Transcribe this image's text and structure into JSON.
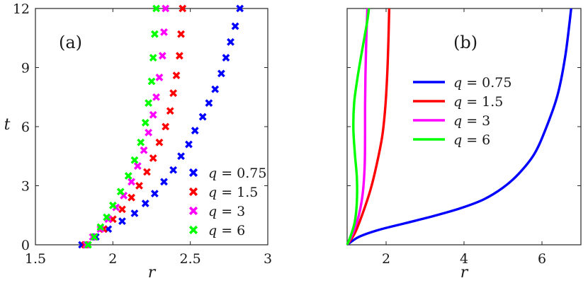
{
  "chart_data": [
    {
      "id": "a",
      "type": "scatter",
      "panel_label": "(a)",
      "xlabel": "r",
      "ylabel": "t",
      "xlim": [
        1.5,
        3
      ],
      "ylim": [
        0,
        12
      ],
      "xticks": [
        1.5,
        2,
        2.5,
        3
      ],
      "xtick_labels": [
        "1.5",
        "2",
        "2.5",
        "3"
      ],
      "yticks": [
        0,
        3,
        6,
        9,
        12
      ],
      "ytick_labels": [
        "0",
        "3",
        "6",
        "9",
        "12"
      ],
      "grid": false,
      "legend_position": "bottom-right",
      "marker": "x",
      "series": [
        {
          "name": "q = 0.75",
          "q": "0.75",
          "color": "#0000ff",
          "x": [
            1.8,
            1.89,
            1.97,
            2.06,
            2.14,
            2.21,
            2.27,
            2.33,
            2.39,
            2.44,
            2.49,
            2.53,
            2.58,
            2.62,
            2.66,
            2.7,
            2.73,
            2.76,
            2.79,
            2.82
          ],
          "y": [
            0.0,
            0.4,
            0.8,
            1.2,
            1.6,
            2.1,
            2.6,
            3.2,
            3.8,
            4.5,
            5.1,
            5.8,
            6.5,
            7.2,
            7.9,
            8.7,
            9.5,
            10.3,
            11.1,
            12.0
          ]
        },
        {
          "name": "q = 1.5",
          "q": "1.5",
          "color": "#ff0000",
          "x": [
            1.82,
            1.88,
            1.94,
            2.0,
            2.06,
            2.12,
            2.17,
            2.22,
            2.26,
            2.3,
            2.34,
            2.37,
            2.39,
            2.41,
            2.43,
            2.44,
            2.45
          ],
          "y": [
            0.0,
            0.4,
            0.8,
            1.3,
            1.8,
            2.4,
            3.0,
            3.7,
            4.4,
            5.2,
            6.0,
            6.8,
            7.7,
            8.6,
            9.6,
            10.7,
            12.0
          ]
        },
        {
          "name": "q = 3",
          "q": "3",
          "color": "#ff00ff",
          "x": [
            1.83,
            1.87,
            1.92,
            1.97,
            2.02,
            2.07,
            2.12,
            2.16,
            2.2,
            2.23,
            2.26,
            2.28,
            2.3,
            2.32,
            2.33,
            2.34
          ],
          "y": [
            0.0,
            0.4,
            0.8,
            1.3,
            1.9,
            2.5,
            3.2,
            4.0,
            4.8,
            5.7,
            6.6,
            7.5,
            8.5,
            9.6,
            10.8,
            12.0
          ]
        },
        {
          "name": "q = 6",
          "q": "6",
          "color": "#00ff00",
          "x": [
            1.84,
            1.88,
            1.92,
            1.96,
            2.0,
            2.05,
            2.1,
            2.14,
            2.18,
            2.21,
            2.23,
            2.25,
            2.26,
            2.27,
            2.28
          ],
          "y": [
            0.0,
            0.4,
            0.9,
            1.4,
            2.0,
            2.7,
            3.5,
            4.3,
            5.2,
            6.2,
            7.2,
            8.3,
            9.5,
            10.7,
            12.0
          ]
        }
      ]
    },
    {
      "id": "b",
      "type": "line",
      "panel_label": "(b)",
      "xlabel": "r",
      "xlim": [
        1,
        7
      ],
      "ylim": [
        0,
        12
      ],
      "xticks": [
        2,
        4,
        6
      ],
      "xtick_labels": [
        "2",
        "4",
        "6"
      ],
      "yticks": [
        0,
        3,
        6,
        9,
        12
      ],
      "ytick_labels": [],
      "grid": false,
      "legend_position": "top-center",
      "series": [
        {
          "name": "q = 0.75",
          "q": "0.75",
          "color": "#0000ff",
          "x": [
            1.0,
            1.3,
            1.8,
            2.5,
            3.2,
            3.9,
            4.5,
            5.0,
            5.4,
            5.8,
            6.1,
            6.4,
            6.6,
            6.75
          ],
          "y": [
            0.0,
            0.4,
            0.75,
            1.1,
            1.45,
            1.85,
            2.3,
            2.9,
            3.6,
            4.6,
            5.9,
            7.6,
            9.6,
            12.0
          ]
        },
        {
          "name": "q = 1.5",
          "q": "1.5",
          "color": "#ff0000",
          "x": [
            1.0,
            1.2,
            1.4,
            1.6,
            1.75,
            1.9,
            1.98,
            2.03,
            2.06,
            2.08
          ],
          "y": [
            0.0,
            0.6,
            1.6,
            2.8,
            4.0,
            5.5,
            7.0,
            8.7,
            10.4,
            12.0
          ]
        },
        {
          "name": "q = 3",
          "q": "3",
          "color": "#ff00ff",
          "x": [
            1.0,
            1.15,
            1.3,
            1.4,
            1.45,
            1.46,
            1.46,
            1.47,
            1.49,
            1.52
          ],
          "y": [
            0.0,
            0.6,
            1.5,
            2.6,
            4.0,
            5.5,
            7.0,
            8.6,
            10.3,
            12.0
          ]
        },
        {
          "name": "q = 6",
          "q": "6",
          "color": "#00ff00",
          "x": [
            1.0,
            1.1,
            1.2,
            1.25,
            1.25,
            1.2,
            1.16,
            1.18,
            1.26,
            1.36,
            1.45,
            1.52,
            1.56
          ],
          "y": [
            0.0,
            0.5,
            1.2,
            2.2,
            3.4,
            4.6,
            5.9,
            7.2,
            8.4,
            9.6,
            10.6,
            11.4,
            12.0
          ]
        }
      ]
    }
  ]
}
